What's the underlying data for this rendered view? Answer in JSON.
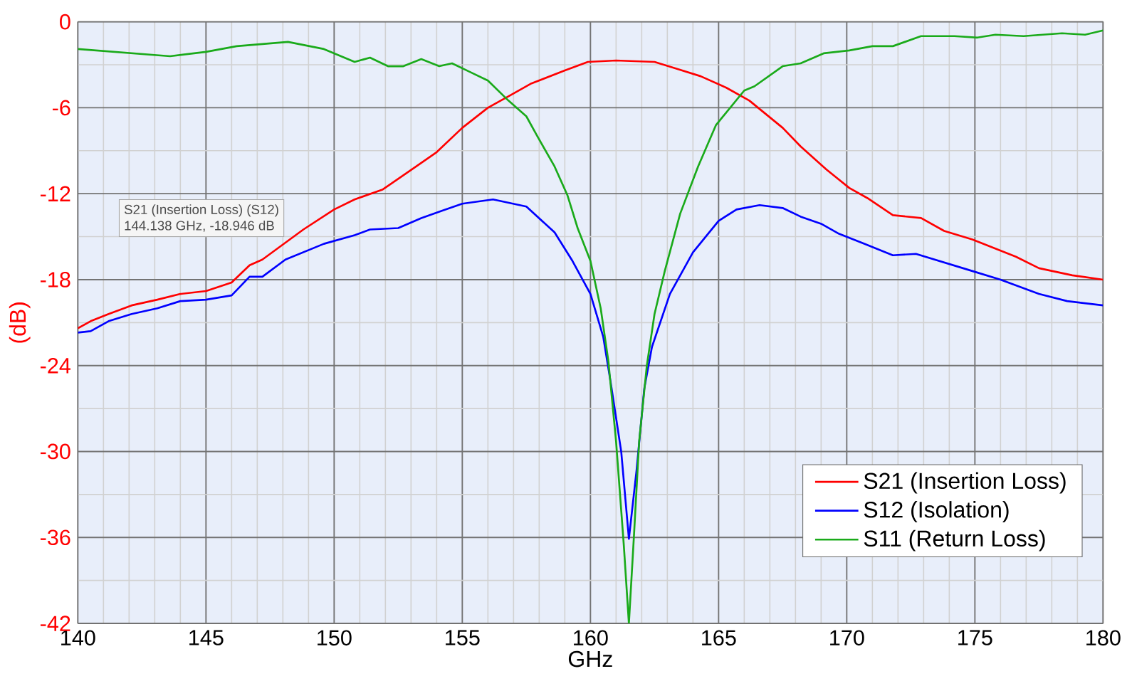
{
  "chart_data": {
    "type": "line",
    "xlabel": "GHz",
    "ylabel": "(dB)",
    "xlim": [
      140,
      180
    ],
    "ylim": [
      -42,
      0
    ],
    "xticks": [
      140,
      145,
      150,
      155,
      160,
      165,
      170,
      175,
      180
    ],
    "yticks": [
      -42,
      -36,
      -30,
      -24,
      -18,
      -12,
      -6,
      0
    ],
    "grid": true,
    "legend": "bottom right",
    "marker": "none",
    "line_style": "solid",
    "annotations": [
      "S21 (Insertion Loss) (S12)",
      "144.138 GHz, -18.946 dB"
    ],
    "series": [
      {
        "name": "S21 (Insertion Loss)",
        "color": "#ff0000",
        "x": [
          140,
          140.5,
          141.2,
          142.1,
          143.1,
          144,
          145,
          146,
          146.7,
          147.2,
          148.8,
          150,
          150.8,
          151.9,
          153.2,
          154,
          155,
          156,
          156.9,
          157.7,
          159,
          159.9,
          161,
          162.5,
          163.4,
          164.3,
          165.3,
          166.2,
          167.5,
          168.2,
          169.2,
          170.1,
          170.8,
          171.8,
          172.9,
          173.8,
          174.9,
          176.6,
          177.5,
          178.8,
          180
        ],
        "values": [
          -21.4,
          -20.9,
          -20.4,
          -19.8,
          -19.4,
          -19.0,
          -18.8,
          -18.2,
          -17.0,
          -16.6,
          -14.5,
          -13.1,
          -12.4,
          -11.7,
          -10.1,
          -9.1,
          -7.4,
          -6.0,
          -5.1,
          -4.3,
          -3.4,
          -2.8,
          -2.7,
          -2.8,
          -3.3,
          -3.8,
          -4.6,
          -5.5,
          -7.4,
          -8.7,
          -10.3,
          -11.6,
          -12.3,
          -13.5,
          -13.7,
          -14.6,
          -15.2,
          -16.4,
          -17.2,
          -17.7,
          -18.0
        ]
      },
      {
        "name": "S12 (Isolation)",
        "color": "#0000ff",
        "x": [
          140,
          140.5,
          141.2,
          142.1,
          143.1,
          144,
          145,
          146,
          146.7,
          147.2,
          148.1,
          149.6,
          150.8,
          151.4,
          152.5,
          153.4,
          154.2,
          155,
          156.2,
          157.5,
          158.6,
          159.3,
          160,
          160.5,
          160.8,
          161.2,
          161.5,
          161.8,
          162.1,
          162.4,
          163.1,
          164,
          165,
          165.7,
          166.6,
          167.5,
          168.2,
          169,
          169.7,
          170.7,
          171.8,
          172.7,
          173.8,
          174.9,
          176,
          177.5,
          178.6,
          180
        ],
        "values": [
          -21.7,
          -21.6,
          -20.9,
          -20.4,
          -20.0,
          -19.5,
          -19.4,
          -19.1,
          -17.8,
          -17.8,
          -16.6,
          -15.5,
          -14.9,
          -14.5,
          -14.4,
          -13.7,
          -13.2,
          -12.7,
          -12.4,
          -12.9,
          -14.7,
          -16.7,
          -19.0,
          -22.0,
          -25.3,
          -30.0,
          -36.1,
          -31.3,
          -25.6,
          -22.7,
          -19.0,
          -16.1,
          -13.9,
          -13.1,
          -12.8,
          -13.0,
          -13.6,
          -14.1,
          -14.8,
          -15.5,
          -16.3,
          -16.2,
          -16.8,
          -17.4,
          -18.0,
          -19.0,
          -19.5,
          -19.8
        ]
      },
      {
        "name": "S11 (Return Loss)",
        "color": "#1aaa1a",
        "x": [
          140,
          143.6,
          145,
          146.2,
          148.2,
          149.6,
          150.8,
          151.4,
          152.1,
          152.7,
          153.4,
          154.1,
          154.6,
          155.3,
          156,
          156.8,
          157.5,
          157.9,
          158.6,
          159.1,
          159.5,
          160,
          160.4,
          160.7,
          161,
          161.3,
          161.5,
          161.7,
          161.9,
          162.2,
          162.5,
          162.9,
          163.5,
          164.2,
          164.9,
          166,
          166.4,
          167.5,
          168.2,
          169.1,
          170.1,
          171,
          171.8,
          172.9,
          174.2,
          175.1,
          175.8,
          176.9,
          178.4,
          179.3,
          180
        ],
        "values": [
          -1.9,
          -2.4,
          -2.1,
          -1.7,
          -1.4,
          -1.9,
          -2.8,
          -2.5,
          -3.1,
          -3.1,
          -2.6,
          -3.1,
          -2.9,
          -3.5,
          -4.1,
          -5.5,
          -6.6,
          -7.9,
          -10.1,
          -12.1,
          -14.4,
          -16.7,
          -20.0,
          -23.7,
          -29.3,
          -36.5,
          -42.0,
          -35.8,
          -29.3,
          -24.0,
          -20.4,
          -17.4,
          -13.4,
          -10.1,
          -7.2,
          -4.8,
          -4.5,
          -3.1,
          -2.9,
          -2.2,
          -2.0,
          -1.7,
          -1.7,
          -1.0,
          -1.0,
          -1.1,
          -0.9,
          -1.0,
          -0.8,
          -0.9,
          -0.6
        ]
      }
    ]
  }
}
